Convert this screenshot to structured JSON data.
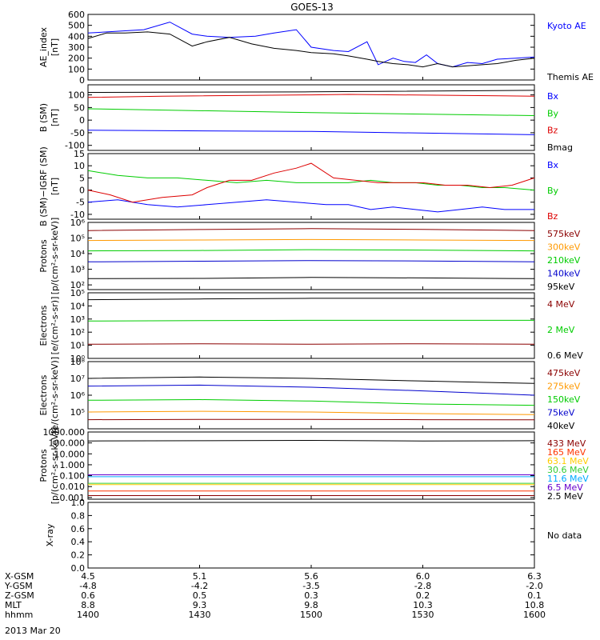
{
  "title": "GOES-13",
  "footer_date": "2013 Mar 20",
  "xaxis": {
    "row_labels": [
      "X-GSM",
      "Y-GSM",
      "Z-GSM",
      "MLT",
      "hhmm"
    ],
    "columns": [
      [
        "4.5",
        "-4.8",
        "0.6",
        "8.8",
        "1400"
      ],
      [
        "5.1",
        "-4.2",
        "0.5",
        "9.3",
        "1430"
      ],
      [
        "5.6",
        "-3.5",
        "0.3",
        "9.8",
        "1500"
      ],
      [
        "6.0",
        "-2.8",
        "0.2",
        "10.3",
        "1530"
      ],
      [
        "6.3",
        "-2.0",
        "0.1",
        "10.8",
        "1600"
      ]
    ],
    "time_range_min": [
      840,
      960
    ]
  },
  "chart_data": [
    {
      "type": "line",
      "ylabel": "AE_index\n[nT]",
      "ylim": [
        0,
        600
      ],
      "scale": "linear",
      "ticks": [
        0,
        100,
        200,
        300,
        400,
        500,
        600
      ],
      "tick_labels": [
        "0",
        "100",
        "200",
        "300",
        "400",
        "500",
        "600"
      ],
      "series": [
        {
          "name": "Kyoto AE",
          "color": "#0000ff",
          "x": [
            840,
            845,
            850,
            855,
            862,
            868,
            872,
            878,
            885,
            890,
            896,
            900,
            906,
            910,
            915,
            918,
            922,
            925,
            928,
            931,
            934,
            938,
            942,
            946,
            950,
            955,
            960
          ],
          "y": [
            430,
            440,
            450,
            460,
            530,
            420,
            400,
            390,
            400,
            430,
            460,
            300,
            270,
            260,
            350,
            140,
            200,
            170,
            160,
            230,
            150,
            120,
            160,
            150,
            190,
            200,
            210
          ]
        },
        {
          "name": "Themis AE",
          "color": "#000000",
          "x": [
            840,
            845,
            850,
            856,
            862,
            868,
            872,
            878,
            884,
            890,
            896,
            900,
            906,
            910,
            915,
            918,
            922,
            926,
            930,
            934,
            938,
            942,
            946,
            950,
            955,
            960
          ],
          "y": [
            380,
            430,
            430,
            440,
            420,
            310,
            350,
            390,
            330,
            290,
            270,
            250,
            240,
            220,
            190,
            170,
            150,
            140,
            120,
            150,
            120,
            130,
            140,
            150,
            180,
            200
          ]
        }
      ]
    },
    {
      "type": "line",
      "ylabel": "B (SM)\n[nT]",
      "ylim": [
        -120,
        140
      ],
      "scale": "linear",
      "ticks": [
        -100,
        -50,
        0,
        50,
        100
      ],
      "tick_labels": [
        "-100",
        "-50",
        "0",
        "50",
        "100"
      ],
      "series": [
        {
          "name": "Bx",
          "color": "#0000ff",
          "x": [
            840,
            900,
            960
          ],
          "y": [
            -40,
            -45,
            -58
          ]
        },
        {
          "name": "By",
          "color": "#00cc00",
          "x": [
            840,
            900,
            960
          ],
          "y": [
            45,
            30,
            18
          ]
        },
        {
          "name": "Bz",
          "color": "#dd0000",
          "x": [
            840,
            860,
            900,
            910,
            960
          ],
          "y": [
            90,
            95,
            100,
            102,
            95
          ]
        },
        {
          "name": "Bmag",
          "color": "#000000",
          "x": [
            840,
            900,
            960
          ],
          "y": [
            110,
            112,
            118
          ]
        }
      ]
    },
    {
      "type": "line",
      "ylabel": "B (SM)−IGRF (SM)\n[nT]",
      "ylim": [
        -12,
        15
      ],
      "scale": "linear",
      "ticks": [
        -10,
        -5,
        0,
        5,
        10,
        15
      ],
      "tick_labels": [
        "-10",
        "-5",
        "0",
        "5",
        "10",
        "15"
      ],
      "series": [
        {
          "name": "Bx",
          "color": "#0000ff",
          "x": [
            840,
            848,
            856,
            864,
            872,
            880,
            888,
            896,
            904,
            910,
            916,
            922,
            928,
            934,
            940,
            946,
            952,
            960
          ],
          "y": [
            -5,
            -4,
            -6,
            -7,
            -6,
            -5,
            -4,
            -5,
            -6,
            -6,
            -8,
            -7,
            -8,
            -9,
            -8,
            -7,
            -8,
            -8
          ]
        },
        {
          "name": "By",
          "color": "#00cc00",
          "x": [
            840,
            848,
            856,
            864,
            872,
            880,
            888,
            896,
            904,
            910,
            916,
            922,
            928,
            934,
            940,
            946,
            952,
            960
          ],
          "y": [
            8,
            6,
            5,
            5,
            4,
            3,
            4,
            3,
            3,
            3,
            4,
            3,
            3,
            2,
            2,
            1,
            1,
            0
          ]
        },
        {
          "name": "Bz",
          "color": "#dd0000",
          "x": [
            840,
            846,
            852,
            860,
            868,
            872,
            878,
            884,
            890,
            896,
            900,
            906,
            912,
            918,
            924,
            930,
            936,
            942,
            948,
            954,
            960
          ],
          "y": [
            0,
            -2,
            -5,
            -3,
            -2,
            1,
            4,
            4,
            7,
            9,
            11,
            5,
            4,
            3,
            3,
            3,
            2,
            2,
            1,
            2,
            5
          ]
        }
      ]
    },
    {
      "type": "line",
      "ylabel": "Protons\n[p/(cm²-s-sr-keV)]",
      "ylim": [
        50,
        1000000
      ],
      "scale": "log",
      "ticks": [
        100,
        1000,
        10000,
        100000,
        1000000
      ],
      "tick_labels": [
        "10²",
        "10³",
        "10⁴",
        "10⁵",
        "10⁶"
      ],
      "series": [
        {
          "name": "575keV",
          "color": "#8b0000",
          "x": [
            840,
            870,
            900,
            930,
            960
          ],
          "y": [
            300000,
            350000,
            400000,
            360000,
            300000
          ]
        },
        {
          "name": "300keV",
          "color": "#ff9900",
          "x": [
            840,
            870,
            900,
            930,
            960
          ],
          "y": [
            70000,
            75000,
            80000,
            75000,
            70000
          ]
        },
        {
          "name": "210keV",
          "color": "#00cc00",
          "x": [
            840,
            870,
            900,
            930,
            960
          ],
          "y": [
            15000,
            16000,
            18000,
            17000,
            15000
          ]
        },
        {
          "name": "140keV",
          "color": "#0000cc",
          "x": [
            840,
            870,
            900,
            930,
            960
          ],
          "y": [
            3000,
            3300,
            3600,
            3400,
            3000
          ]
        },
        {
          "name": "95keV",
          "color": "#000000",
          "x": [
            840,
            870,
            900,
            930,
            960
          ],
          "y": [
            250,
            260,
            300,
            280,
            250
          ]
        }
      ]
    },
    {
      "type": "line",
      "ylabel": "Electrons\n[e/(cm²-s-sr)]",
      "ylim": [
        1,
        100000
      ],
      "scale": "log",
      "ticks": [
        1,
        10,
        100,
        1000,
        10000,
        100000
      ],
      "tick_labels": [
        "10⁰",
        "10¹",
        "10²",
        "10³",
        "10⁴",
        "10⁵"
      ],
      "series": [
        {
          "name": "4 MeV",
          "color": "#8b0000",
          "x": [
            840,
            870,
            900,
            930,
            960
          ],
          "y": [
            12,
            13,
            12,
            13,
            12
          ]
        },
        {
          "name": "2 MeV",
          "color": "#00cc00",
          "x": [
            840,
            870,
            900,
            930,
            960
          ],
          "y": [
            700,
            750,
            800,
            800,
            800
          ]
        },
        {
          "name": "0.6 MeV",
          "color": "#000000",
          "x": [
            840,
            870,
            900,
            930,
            960
          ],
          "y": [
            30000,
            34000,
            38000,
            38000,
            37000
          ]
        }
      ]
    },
    {
      "type": "line",
      "ylabel": "Electrons\n[e/(cm²-s-sr-keV)]",
      "ylim": [
        10000,
        100000000
      ],
      "scale": "log",
      "ticks": [
        100000,
        1000000,
        10000000,
        100000000
      ],
      "tick_labels": [
        "10⁵",
        "10⁶",
        "10⁷",
        "10⁸"
      ],
      "series": [
        {
          "name": "475keV",
          "color": "#8b0000",
          "x": [
            840,
            870,
            900,
            930,
            960
          ],
          "y": [
            35000,
            36000,
            36000,
            35000,
            34000
          ]
        },
        {
          "name": "275keV",
          "color": "#ff9900",
          "x": [
            840,
            870,
            900,
            930,
            960
          ],
          "y": [
            100000,
            110000,
            100000,
            80000,
            70000
          ]
        },
        {
          "name": "150keV",
          "color": "#00cc00",
          "x": [
            840,
            870,
            900,
            930,
            960
          ],
          "y": [
            500000,
            550000,
            450000,
            300000,
            250000
          ]
        },
        {
          "name": "75keV",
          "color": "#0000cc",
          "x": [
            840,
            870,
            900,
            930,
            960
          ],
          "y": [
            3500000,
            4000000,
            3000000,
            1800000,
            1000000
          ]
        },
        {
          "name": "40keV",
          "color": "#000000",
          "x": [
            840,
            870,
            900,
            930,
            960
          ],
          "y": [
            10000000,
            12000000,
            10000000,
            7000000,
            5000000
          ]
        }
      ]
    },
    {
      "type": "line",
      "ylabel": "Protons\n[p/(cm²-s-sr-keV)]",
      "ylim": [
        0.0007,
        1000
      ],
      "scale": "log",
      "ticks": [
        0.001,
        0.01,
        0.1,
        1,
        10,
        100,
        1000
      ],
      "tick_labels": [
        "0.001",
        "0.010",
        "0.100",
        "1.000",
        "10.000",
        "100.000",
        "1000.000"
      ],
      "series": [
        {
          "name": "433 MeV",
          "color": "#8b0000",
          "x": [
            840,
            960
          ],
          "y": [
            0.0015,
            0.0015
          ]
        },
        {
          "name": "165 MeV",
          "color": "#ff3300",
          "x": [
            840,
            960
          ],
          "y": [
            0.004,
            0.004
          ]
        },
        {
          "name": "63.1 MeV",
          "color": "#ffcc00",
          "x": [
            840,
            960
          ],
          "y": [
            0.015,
            0.015
          ]
        },
        {
          "name": "30.6 MeV",
          "color": "#33cc33",
          "x": [
            840,
            960
          ],
          "y": [
            0.02,
            0.02
          ]
        },
        {
          "name": "11.6 MeV",
          "color": "#00aaff",
          "x": [
            840,
            960
          ],
          "y": [
            0.08,
            0.08
          ]
        },
        {
          "name": "6.5 MeV",
          "color": "#6600cc",
          "x": [
            840,
            960
          ],
          "y": [
            0.12,
            0.12
          ]
        },
        {
          "name": "2.5 MeV",
          "color": "#000000",
          "x": [
            840,
            870,
            900,
            930,
            960
          ],
          "y": [
            150,
            160,
            170,
            150,
            160
          ]
        }
      ]
    },
    {
      "type": "line",
      "ylabel": "X-ray",
      "ylim": [
        0,
        1
      ],
      "scale": "linear",
      "ticks": [
        0,
        0.2,
        0.4,
        0.6,
        0.8,
        1.0
      ],
      "tick_labels": [
        "0.0",
        "0.2",
        "0.4",
        "0.6",
        "0.8",
        "1.0"
      ],
      "annotation": "No data",
      "series": []
    }
  ]
}
